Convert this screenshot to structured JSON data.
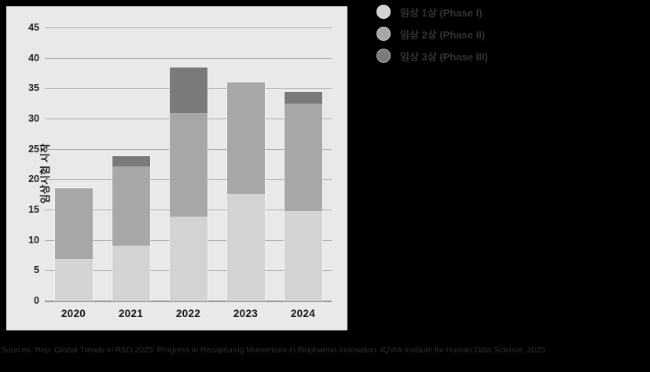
{
  "chart_data": {
    "type": "bar",
    "stacked": true,
    "title": "",
    "ylabel": "임상시험 시작",
    "xlabel": "",
    "categories": [
      "2020",
      "2021",
      "2022",
      "2023",
      "2024"
    ],
    "series": [
      {
        "name": "임상 1상 (Phase I)",
        "color": "#d3d3d3",
        "values": [
          6.9,
          9.0,
          13.9,
          17.6,
          14.7
        ]
      },
      {
        "name": "임상 2상 (Phase II)",
        "color": "#a7a7a7",
        "values": [
          11.6,
          13.1,
          17.0,
          18.4,
          17.8
        ]
      },
      {
        "name": "임상 3상 (Phase III)",
        "color": "#7a7a7a",
        "values": [
          0,
          1.7,
          7.5,
          0,
          1.9
        ]
      }
    ],
    "totals": [
      18.5,
      23.8,
      38.4,
      36.0,
      34.4
    ],
    "ylim": [
      0,
      45
    ],
    "ytick_step": 5,
    "grid": "horizontal",
    "legend_position": "top-right"
  },
  "source_note": "Sources: Rep. Global Trends in R&D 2025: Progress in Recapturing Momentum in Biopharma Innovation. IQVIA Institute for Human Data Science, 2025.",
  "colors": {
    "page_bg": "#000000",
    "panel_bg": "#e9e9e9",
    "gridline": "#aeaeae",
    "axis_line": "#969696",
    "tick_text": "#1f1f1f",
    "legend_text": "#333333",
    "source_text": "#2f2f2f"
  }
}
